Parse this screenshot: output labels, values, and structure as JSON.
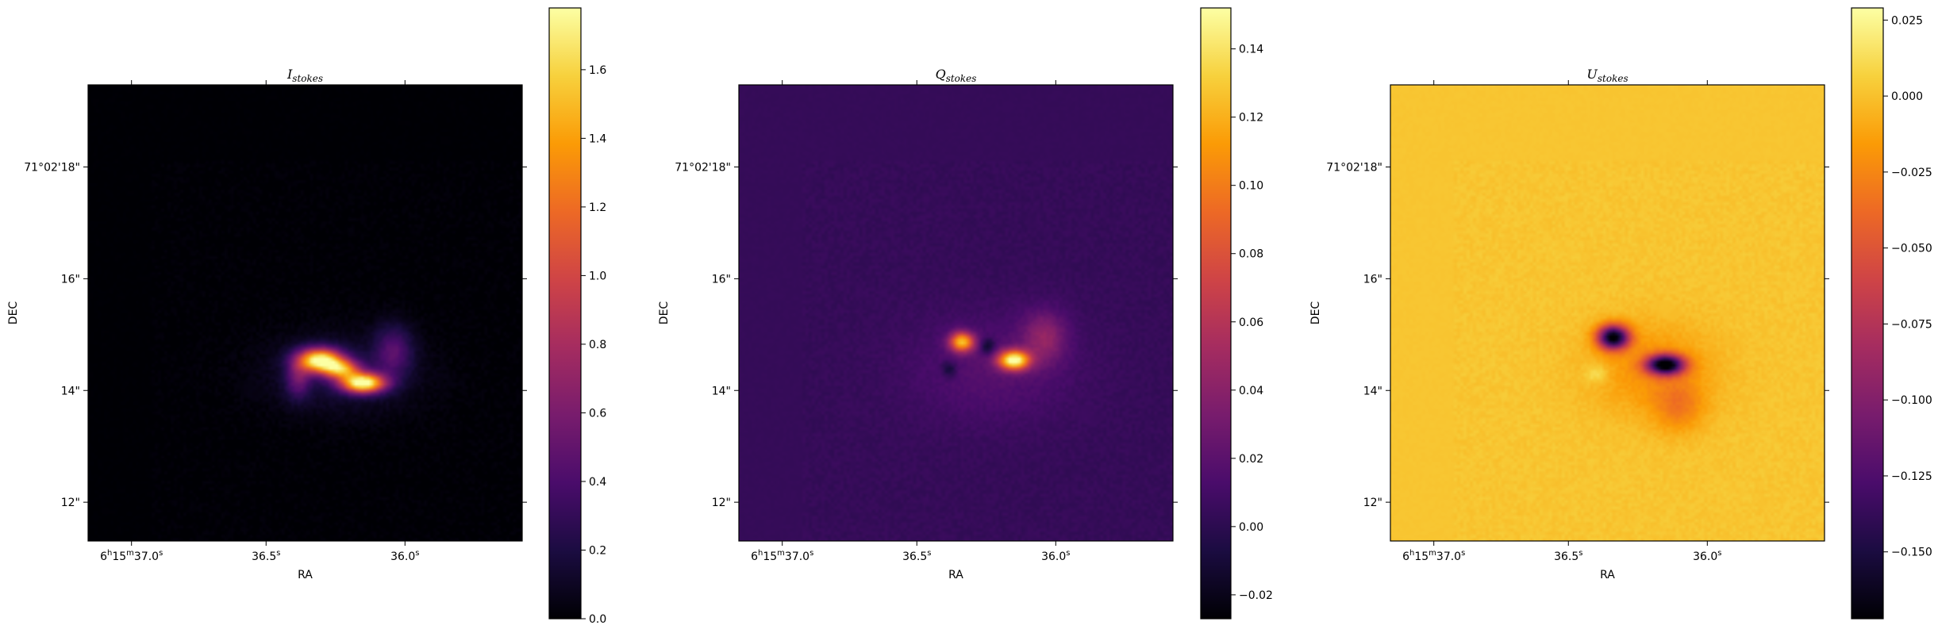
{
  "colors": {
    "background": "#ffffff",
    "axes_edge": "#000000",
    "colormap": "inferno",
    "colormap_stops": [
      "#000004",
      "#1b0c41",
      "#4a0c6b",
      "#781c6d",
      "#a52c60",
      "#cf4446",
      "#ed6925",
      "#fb9b06",
      "#f7d13d",
      "#fcffa4"
    ]
  },
  "chart_data": [
    {
      "type": "heatmap",
      "title_base": "I",
      "title_sub": "stokes",
      "xlabel": "RA",
      "ylabel": "DEC",
      "x_ticks": [
        "6h15m37.0s",
        "36.5s",
        "36.0s"
      ],
      "x_tick_parts": [
        [
          "6",
          "h",
          "15",
          "m",
          "37.0",
          "s"
        ],
        [
          "36.5",
          "s"
        ],
        [
          "36.0",
          "s"
        ]
      ],
      "y_ticks": [
        "71°02'18\"",
        "16\"",
        "14\"",
        "12\""
      ],
      "colorbar": {
        "min": 0.0,
        "max": 1.78,
        "ticks": [
          "0.0",
          "0.2",
          "0.4",
          "0.6",
          "0.8",
          "1.0",
          "1.2",
          "1.4",
          "1.6"
        ],
        "tick_values": [
          0.0,
          0.2,
          0.4,
          0.6,
          0.8,
          1.0,
          1.2,
          1.4,
          1.6
        ]
      },
      "background_value": 0.003,
      "features": [
        {
          "x": 0.53,
          "y": 0.6,
          "sx": 0.035,
          "sy": 0.018,
          "value": 1.72
        },
        {
          "x": 0.63,
          "y": 0.65,
          "sx": 0.035,
          "sy": 0.015,
          "value": 1.78
        },
        {
          "x": 0.58,
          "y": 0.62,
          "sx": 0.03,
          "sy": 0.015,
          "value": 1.1
        },
        {
          "x": 0.58,
          "y": 0.63,
          "sx": 0.12,
          "sy": 0.06,
          "value": 0.18
        },
        {
          "x": 0.7,
          "y": 0.58,
          "sx": 0.03,
          "sy": 0.04,
          "value": 0.4
        },
        {
          "x": 0.48,
          "y": 0.64,
          "sx": 0.02,
          "sy": 0.03,
          "value": 0.45
        }
      ]
    },
    {
      "type": "heatmap",
      "title_base": "Q",
      "title_sub": "stokes",
      "xlabel": "RA",
      "ylabel": "DEC",
      "x_ticks": [
        "6h15m37.0s",
        "36.5s",
        "36.0s"
      ],
      "x_tick_parts": [
        [
          "6",
          "h",
          "15",
          "m",
          "37.0",
          "s"
        ],
        [
          "36.5",
          "s"
        ],
        [
          "36.0",
          "s"
        ]
      ],
      "y_ticks": [
        "71°02'18\"",
        "16\"",
        "14\"",
        "12\""
      ],
      "colorbar": {
        "min": -0.027,
        "max": 0.152,
        "ticks": [
          "−0.02",
          "0.00",
          "0.02",
          "0.04",
          "0.06",
          "0.08",
          "0.10",
          "0.12",
          "0.14"
        ],
        "tick_values": [
          -0.02,
          0.0,
          0.02,
          0.04,
          0.06,
          0.08,
          0.1,
          0.12,
          0.14
        ]
      },
      "background_value": 0.004,
      "features": [
        {
          "x": 0.51,
          "y": 0.56,
          "sx": 0.02,
          "sy": 0.015,
          "value": 0.12
        },
        {
          "x": 0.63,
          "y": 0.6,
          "sx": 0.025,
          "sy": 0.015,
          "value": 0.152
        },
        {
          "x": 0.57,
          "y": 0.57,
          "sx": 0.012,
          "sy": 0.012,
          "value": -0.027
        },
        {
          "x": 0.48,
          "y": 0.62,
          "sx": 0.012,
          "sy": 0.012,
          "value": -0.02
        },
        {
          "x": 0.58,
          "y": 0.62,
          "sx": 0.13,
          "sy": 0.08,
          "value": 0.018
        },
        {
          "x": 0.7,
          "y": 0.55,
          "sx": 0.035,
          "sy": 0.04,
          "value": 0.04
        }
      ]
    },
    {
      "type": "heatmap",
      "title_base": "U",
      "title_sub": "stokes",
      "xlabel": "RA",
      "ylabel": "DEC",
      "x_ticks": [
        "6h15m37.0s",
        "36.5s",
        "36.0s"
      ],
      "x_tick_parts": [
        [
          "6",
          "h",
          "15",
          "m",
          "37.0",
          "s"
        ],
        [
          "36.5",
          "s"
        ],
        [
          "36.0",
          "s"
        ]
      ],
      "y_ticks": [
        "71°02'18\"",
        "16\"",
        "14\"",
        "12\""
      ],
      "colorbar": {
        "min": -0.172,
        "max": 0.029,
        "ticks": [
          "−0.150",
          "−0.125",
          "−0.100",
          "−0.075",
          "−0.050",
          "−0.025",
          "0.000",
          "0.025"
        ],
        "tick_values": [
          -0.15,
          -0.125,
          -0.1,
          -0.075,
          -0.05,
          -0.025,
          0.0,
          0.025
        ]
      },
      "background_value": 0.002,
      "features": [
        {
          "x": 0.51,
          "y": 0.55,
          "sx": 0.025,
          "sy": 0.018,
          "value": -0.172
        },
        {
          "x": 0.63,
          "y": 0.61,
          "sx": 0.03,
          "sy": 0.015,
          "value": -0.172
        },
        {
          "x": 0.47,
          "y": 0.63,
          "sx": 0.02,
          "sy": 0.015,
          "value": 0.02
        },
        {
          "x": 0.6,
          "y": 0.62,
          "sx": 0.1,
          "sy": 0.07,
          "value": -0.02
        },
        {
          "x": 0.66,
          "y": 0.7,
          "sx": 0.04,
          "sy": 0.04,
          "value": -0.025
        }
      ]
    }
  ]
}
